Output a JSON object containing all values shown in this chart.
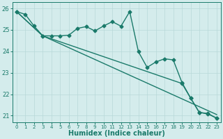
{
  "bg_color": "#d4ecec",
  "grid_color": "#b8d8d8",
  "line_color": "#1a7a6a",
  "xlabel": "Humidex (Indice chaleur)",
  "xlim": [
    -0.5,
    23.5
  ],
  "ylim": [
    20.7,
    26.3
  ],
  "yticks": [
    21,
    22,
    23,
    24,
    25,
    26
  ],
  "xticks": [
    0,
    1,
    2,
    3,
    4,
    5,
    6,
    7,
    8,
    9,
    10,
    11,
    12,
    13,
    14,
    15,
    16,
    17,
    18,
    19,
    20,
    21,
    22,
    23
  ],
  "line1_x": [
    0,
    1,
    2,
    3,
    4,
    5,
    6,
    7,
    8,
    9,
    10,
    11,
    12,
    13,
    14,
    15,
    16,
    17,
    18,
    19,
    20,
    21,
    22,
    23
  ],
  "line1_y": [
    25.85,
    25.72,
    25.18,
    24.72,
    24.72,
    24.72,
    24.75,
    25.07,
    25.15,
    24.95,
    25.18,
    25.38,
    25.17,
    25.85,
    23.98,
    23.25,
    23.5,
    23.65,
    23.6,
    22.55,
    21.82,
    21.15,
    21.1,
    20.88
  ],
  "line2_x": [
    0,
    3,
    23
  ],
  "line2_y": [
    25.85,
    24.72,
    21.05
  ],
  "line3_x": [
    0,
    3,
    19,
    20,
    21,
    22,
    23
  ],
  "line3_y": [
    25.85,
    24.72,
    22.5,
    21.82,
    21.15,
    21.08,
    20.88
  ]
}
